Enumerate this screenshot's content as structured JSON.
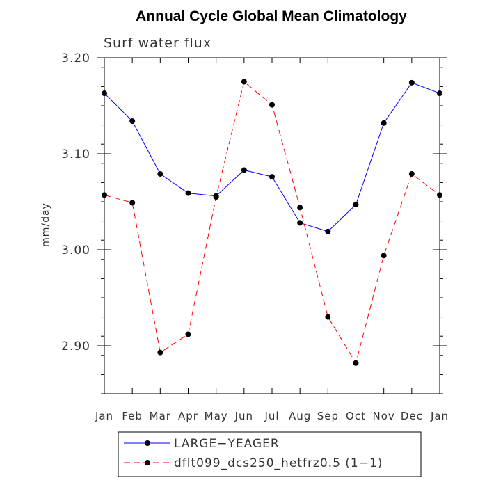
{
  "chart_data": {
    "type": "line",
    "title": "Annual Cycle Global Mean Climatology",
    "subtitle": "Surf water flux",
    "xlabel": "",
    "ylabel": "mm/day",
    "categories": [
      "Jan",
      "Feb",
      "Mar",
      "Apr",
      "May",
      "Jun",
      "Jul",
      "Aug",
      "Sep",
      "Oct",
      "Nov",
      "Dec",
      "Jan"
    ],
    "ylim": [
      2.85,
      3.2
    ],
    "yticks": [
      2.9,
      3.0,
      3.1,
      3.2
    ],
    "ytick_labels": [
      "2.90",
      "3.00",
      "3.10",
      "3.20"
    ],
    "yminor_step": 0.02,
    "legend_position": "bottom",
    "series": [
      {
        "name": "LARGE−YEAGER",
        "color": "#0000ff",
        "style": "solid",
        "values": [
          3.163,
          3.134,
          3.079,
          3.059,
          3.056,
          3.083,
          3.076,
          3.028,
          3.019,
          3.047,
          3.132,
          3.174,
          3.163
        ]
      },
      {
        "name": "dflt099_dcs250_hetfrz0.5 (1−1)",
        "color": "#ff0000",
        "style": "dashed",
        "values": [
          3.057,
          3.049,
          2.893,
          2.912,
          3.055,
          3.175,
          3.151,
          3.044,
          2.93,
          2.882,
          2.994,
          3.079,
          3.057
        ]
      }
    ]
  }
}
